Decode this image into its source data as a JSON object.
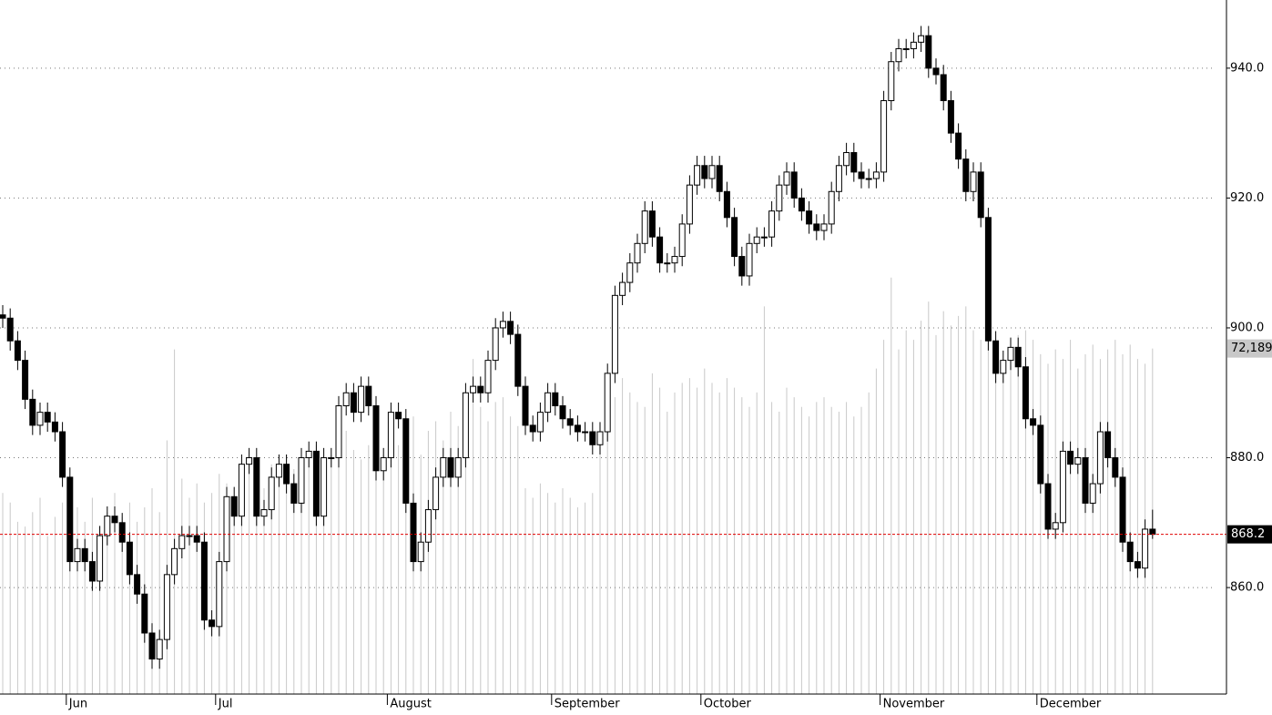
{
  "chart_data": {
    "type": "candlestick",
    "open": [
      902,
      901.5,
      898,
      895,
      889,
      885,
      887,
      885.5,
      884,
      877,
      864,
      866,
      864,
      861,
      868,
      871,
      870,
      867,
      862,
      859,
      853,
      849,
      852,
      862,
      866,
      868,
      868,
      867,
      855,
      854,
      864,
      874,
      871,
      879,
      880,
      871,
      872,
      877,
      879,
      876,
      873,
      880,
      881,
      871,
      880,
      880,
      888,
      890,
      887,
      891,
      888,
      878,
      880,
      887,
      886,
      873,
      864,
      867,
      872,
      877,
      880,
      877,
      880,
      890,
      891,
      890,
      895,
      900,
      901,
      899,
      891,
      885,
      884,
      887,
      890,
      888,
      886,
      885,
      884,
      884,
      882,
      884,
      893,
      905,
      907,
      910,
      913,
      918,
      914,
      910,
      910,
      911,
      916,
      922,
      925,
      923,
      925,
      921,
      917,
      911,
      908,
      913,
      914,
      914,
      918,
      922,
      924,
      920,
      918,
      916,
      915,
      916,
      921,
      925,
      927,
      924,
      923,
      923,
      924,
      935,
      941,
      943,
      943,
      944,
      945,
      940,
      939,
      935,
      930,
      926,
      921,
      924,
      917,
      898,
      893,
      895,
      897,
      894,
      886,
      885,
      876,
      869,
      870,
      881,
      879,
      880,
      873,
      876,
      884,
      880,
      877,
      867,
      864,
      863,
      869
    ],
    "high": [
      903.5,
      903,
      899.5,
      896.5,
      890.5,
      888.5,
      888.5,
      887,
      885.5,
      878.5,
      867.5,
      867.5,
      865.5,
      869.5,
      872.5,
      872.5,
      871.5,
      868.5,
      863.5,
      860.5,
      854.5,
      853.5,
      863.5,
      867.5,
      869.5,
      869.5,
      869.5,
      868.5,
      856.5,
      865.5,
      875.5,
      875.5,
      880.5,
      881.5,
      881.5,
      873.5,
      878.5,
      880.5,
      880.5,
      877.5,
      881.5,
      882.5,
      882.5,
      881.5,
      881.5,
      889.5,
      891.5,
      891.5,
      892.5,
      892.5,
      889.5,
      881.5,
      888.5,
      888.5,
      887.5,
      874.5,
      868.5,
      873.5,
      878.5,
      881.5,
      881.5,
      881.5,
      891.5,
      892.5,
      892.5,
      896.5,
      901.5,
      902.5,
      902.5,
      900.5,
      892.5,
      886.5,
      888.5,
      891.5,
      891.5,
      889.5,
      887.5,
      886.5,
      885.5,
      885.5,
      885.5,
      894.5,
      906.5,
      908.5,
      911.5,
      914.5,
      919.5,
      919.5,
      915.5,
      911.5,
      912.5,
      917.5,
      923.5,
      926.5,
      926.5,
      926.5,
      926.5,
      922.5,
      918.5,
      912.5,
      914.5,
      915.5,
      915.5,
      919.5,
      923.5,
      925.5,
      925.5,
      921.5,
      919.5,
      917.5,
      917.5,
      922.5,
      926.5,
      928.5,
      928.5,
      925.5,
      924.5,
      925.5,
      936.5,
      942.5,
      944.5,
      944.5,
      945.5,
      946.5,
      946.5,
      941.5,
      940.5,
      936.5,
      931.5,
      927.5,
      925.5,
      925.5,
      918.5,
      899.5,
      896.5,
      898.5,
      898.5,
      895.5,
      887.5,
      886.5,
      877.5,
      871.5,
      882.5,
      882.5,
      881.5,
      881.5,
      877.5,
      885.5,
      885.5,
      881.5,
      878.5,
      868.5,
      865.5,
      870.5,
      872
    ],
    "low": [
      900,
      896.5,
      893.5,
      887.5,
      883.5,
      883.5,
      884,
      882.5,
      875.5,
      862.5,
      862.5,
      862.5,
      859.5,
      859.5,
      866.5,
      868.5,
      865.5,
      860.5,
      857.5,
      851.5,
      847.5,
      847.5,
      850.5,
      860.5,
      864.5,
      866.5,
      865.5,
      853.5,
      852.5,
      852.5,
      862.5,
      869.5,
      869.5,
      877.5,
      869.5,
      869.5,
      870.5,
      875.5,
      874.5,
      871.5,
      871.5,
      878.5,
      869.5,
      869.5,
      878.5,
      878.5,
      886.5,
      885.5,
      885.5,
      886.5,
      876.5,
      876.5,
      878.5,
      884.5,
      871.5,
      862.5,
      862.5,
      865.5,
      870.5,
      875.5,
      875.5,
      875.5,
      878.5,
      888.5,
      888.5,
      888.5,
      893.5,
      898.5,
      897.5,
      889.5,
      883.5,
      882.5,
      882.5,
      885.5,
      886.5,
      884.5,
      883.5,
      882.5,
      882.5,
      880.5,
      880.5,
      882.5,
      891.5,
      903.5,
      905.5,
      908.5,
      911.5,
      912.5,
      908.5,
      908.5,
      908.5,
      909.5,
      914.5,
      920.5,
      921.5,
      921.5,
      919.5,
      915.5,
      909.5,
      906.5,
      906.5,
      911.5,
      912.5,
      912.5,
      916.5,
      920.5,
      918.5,
      916.5,
      914.5,
      913.5,
      913.5,
      914.5,
      919.5,
      923.5,
      922.5,
      921.5,
      921.5,
      921.5,
      922.5,
      933.5,
      939.5,
      941.5,
      941.5,
      942.5,
      938.5,
      937.5,
      933.5,
      928.5,
      924.5,
      919.5,
      919.5,
      915.5,
      896.5,
      891.5,
      891.5,
      893.5,
      892.5,
      884.5,
      883.5,
      874.5,
      867.5,
      867.5,
      868.5,
      877.5,
      877.5,
      871.5,
      871.5,
      874.5,
      878.5,
      875.5,
      865.5,
      862.5,
      861.5,
      861.5,
      867.5
    ],
    "close": [
      901.5,
      898,
      895,
      889,
      885,
      887,
      885.5,
      884,
      877,
      864,
      866,
      864,
      861,
      868,
      871,
      870,
      867,
      862,
      859,
      853,
      849,
      852,
      862,
      866,
      868,
      868,
      867,
      855,
      854,
      864,
      874,
      871,
      879,
      880,
      871,
      872,
      877,
      879,
      876,
      873,
      880,
      881,
      871,
      880,
      880,
      888,
      890,
      887,
      891,
      888,
      878,
      880,
      887,
      886,
      873,
      864,
      867,
      872,
      877,
      880,
      877,
      880,
      890,
      891,
      890,
      895,
      900,
      901,
      899,
      891,
      885,
      884,
      887,
      890,
      888,
      886,
      885,
      884,
      884,
      882,
      884,
      893,
      905,
      907,
      910,
      913,
      918,
      914,
      910,
      910,
      911,
      916,
      922,
      925,
      923,
      925,
      921,
      917,
      911,
      908,
      913,
      914,
      914,
      918,
      922,
      924,
      920,
      918,
      916,
      915,
      916,
      921,
      925,
      927,
      924,
      923,
      923,
      924,
      935,
      941,
      943,
      943,
      944,
      945,
      940,
      939,
      935,
      930,
      926,
      921,
      924,
      917,
      898,
      893,
      895,
      897,
      894,
      886,
      885,
      876,
      869,
      870,
      881,
      879,
      880,
      873,
      876,
      884,
      880,
      877,
      867,
      864,
      863,
      869,
      868.2
    ],
    "volume": [
      42000,
      40000,
      36000,
      35000,
      38000,
      41000,
      33000,
      37000,
      40000,
      44000,
      39000,
      36000,
      41000,
      35000,
      38000,
      42000,
      37000,
      40000,
      36000,
      39000,
      43000,
      38000,
      53000,
      72000,
      45000,
      41000,
      44000,
      40000,
      42000,
      46000,
      44000,
      41000,
      47000,
      49000,
      45000,
      43000,
      48000,
      46000,
      50000,
      47000,
      51000,
      49000,
      52000,
      48000,
      50000,
      53000,
      55000,
      51000,
      49000,
      52000,
      54000,
      50000,
      48000,
      52000,
      56000,
      58000,
      50000,
      55000,
      57000,
      53000,
      59000,
      56000,
      58000,
      70000,
      60000,
      57000,
      61000,
      62000,
      58000,
      56000,
      43000,
      41000,
      44000,
      42000,
      40000,
      43000,
      41000,
      39000,
      40000,
      42000,
      53000,
      57000,
      62000,
      66000,
      63000,
      61000,
      60000,
      67000,
      64000,
      59000,
      63000,
      65000,
      66000,
      64000,
      68000,
      65000,
      63000,
      66000,
      64000,
      62000,
      60000,
      63000,
      81000,
      61000,
      59000,
      64000,
      62000,
      60000,
      58000,
      61000,
      62000,
      60000,
      59000,
      61000,
      58000,
      60000,
      63000,
      68000,
      74000,
      87000,
      72000,
      76000,
      74000,
      78000,
      82000,
      75000,
      80000,
      77000,
      79000,
      81000,
      76000,
      74000,
      78000,
      72000,
      70000,
      73000,
      75000,
      76000,
      74000,
      71000,
      69000,
      72000,
      70000,
      74000,
      68000,
      71000,
      73000,
      70000,
      72000,
      74000,
      71000,
      73000,
      70000,
      69000,
      72189
    ],
    "last_volume_label": "72,189",
    "ylim": [
      843.6,
      950.5
    ],
    "yticks": [
      {
        "value": 860,
        "label": "860.0"
      },
      {
        "value": 880,
        "label": "880.0"
      },
      {
        "value": 900,
        "label": "900.0"
      },
      {
        "value": 920,
        "label": "920.0"
      },
      {
        "value": 940,
        "label": "940.0"
      }
    ],
    "vlim": [
      0,
      145000
    ],
    "xticks": [
      {
        "value": 9,
        "label": "Jun"
      },
      {
        "value": 29,
        "label": "Jul"
      },
      {
        "value": 52,
        "label": "August"
      },
      {
        "value": 74,
        "label": "September"
      },
      {
        "value": 94,
        "label": "October"
      },
      {
        "value": 118,
        "label": "November"
      },
      {
        "value": 139,
        "label": "December"
      }
    ],
    "grid": true,
    "up_color": "#ffffff",
    "down_color": "#000000",
    "volume_color": "#c8c8c8",
    "last_line_color": "#e00000"
  }
}
